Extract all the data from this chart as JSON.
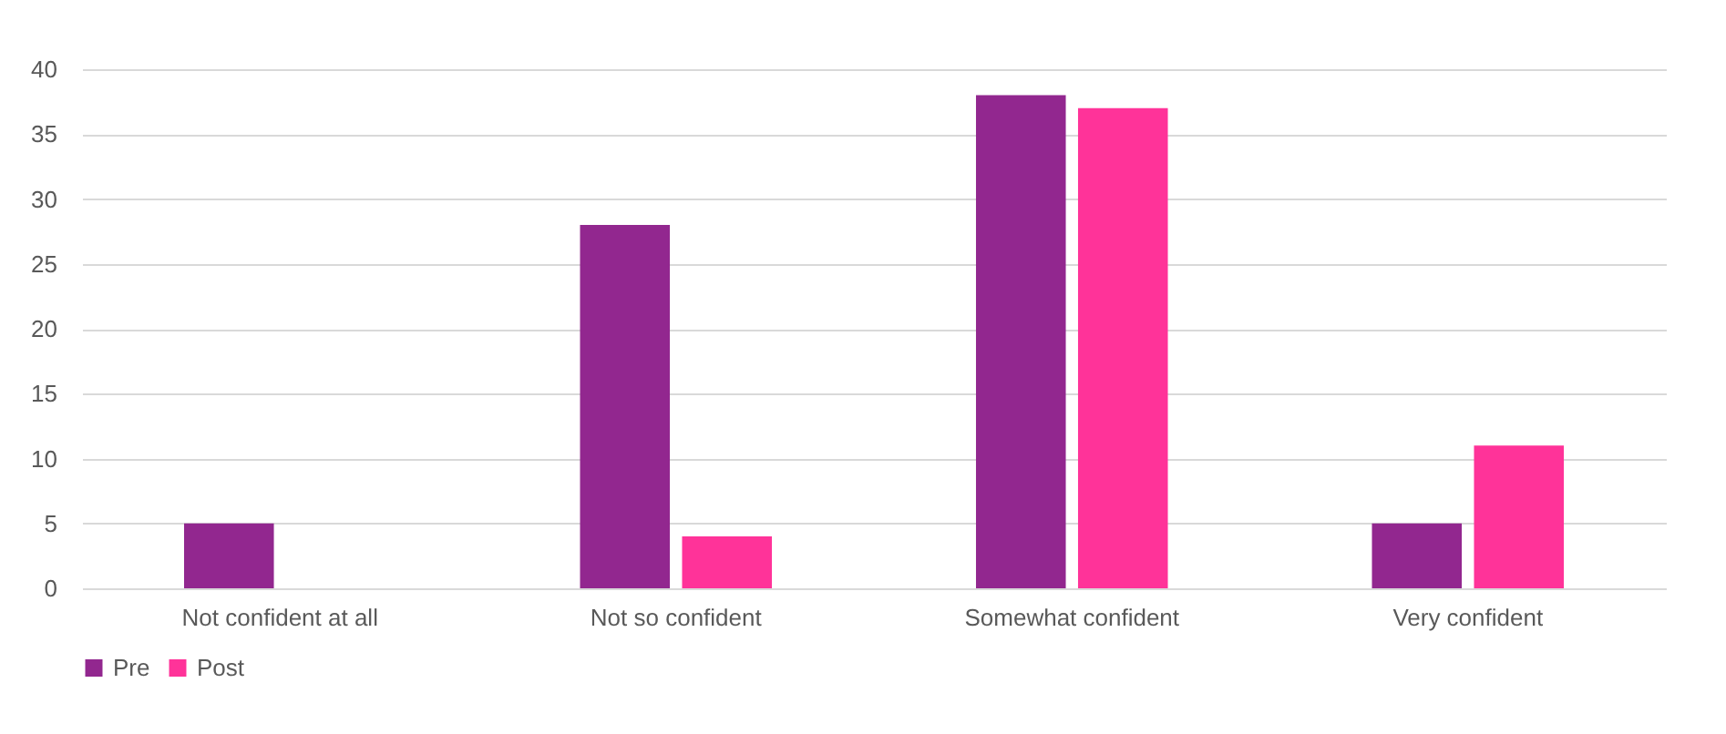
{
  "chart_data": {
    "type": "bar",
    "categories": [
      "Not confident at all",
      "Not so confident",
      "Somewhat confident",
      "Very confident"
    ],
    "series": [
      {
        "name": "Pre",
        "color": "#92278f",
        "values": [
          5,
          28,
          38,
          5
        ]
      },
      {
        "name": "Post",
        "color": "#ff3399",
        "values": [
          0,
          4,
          37,
          11
        ]
      }
    ],
    "ylim": [
      0,
      40
    ],
    "yticks": [
      0,
      5,
      10,
      15,
      20,
      25,
      30,
      35,
      40
    ],
    "grid": "y",
    "legend": "bottom"
  }
}
